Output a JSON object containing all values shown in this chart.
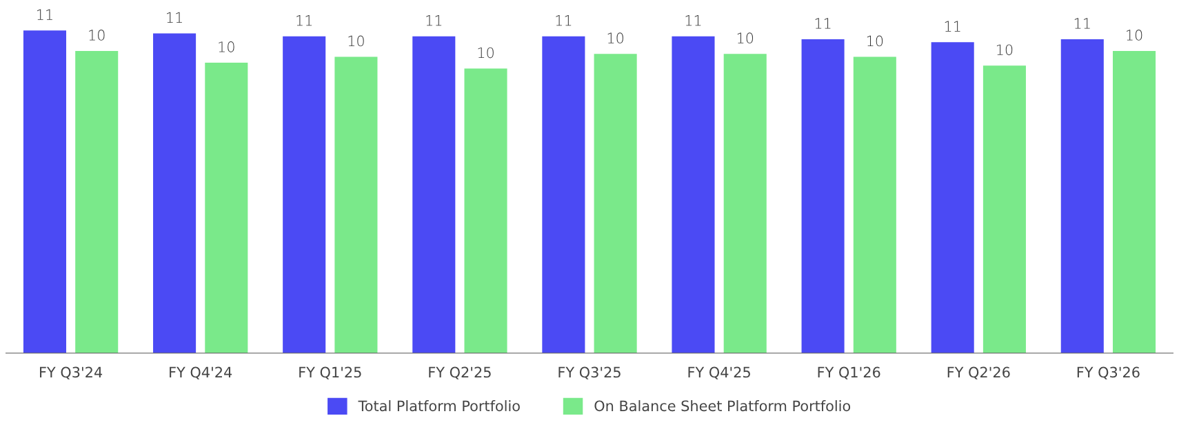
{
  "chart_data": {
    "type": "bar",
    "categories": [
      "FY Q3'24",
      "FY Q4'24",
      "FY Q1'25",
      "FY Q2'25",
      "FY Q3'25",
      "FY Q4'25",
      "FY Q1'26",
      "FY Q2'26",
      "FY Q3'26"
    ],
    "series": [
      {
        "name": "Total Platform Portfolio",
        "color": "#4b4af4",
        "values": [
          11.0,
          10.9,
          10.8,
          10.8,
          10.8,
          10.8,
          10.7,
          10.6,
          10.7
        ],
        "value_labels": [
          "11",
          "11",
          "11",
          "11",
          "11",
          "11",
          "11",
          "11",
          "11"
        ]
      },
      {
        "name": "On Balance Sheet Platform Portfolio",
        "color": "#7ae98a",
        "values": [
          10.3,
          9.9,
          10.1,
          9.7,
          10.2,
          10.2,
          10.1,
          9.8,
          10.3
        ],
        "value_labels": [
          "10",
          "10",
          "10",
          "10",
          "10",
          "10",
          "10",
          "10",
          "10"
        ]
      }
    ],
    "legend": "bottom",
    "grid": false
  }
}
